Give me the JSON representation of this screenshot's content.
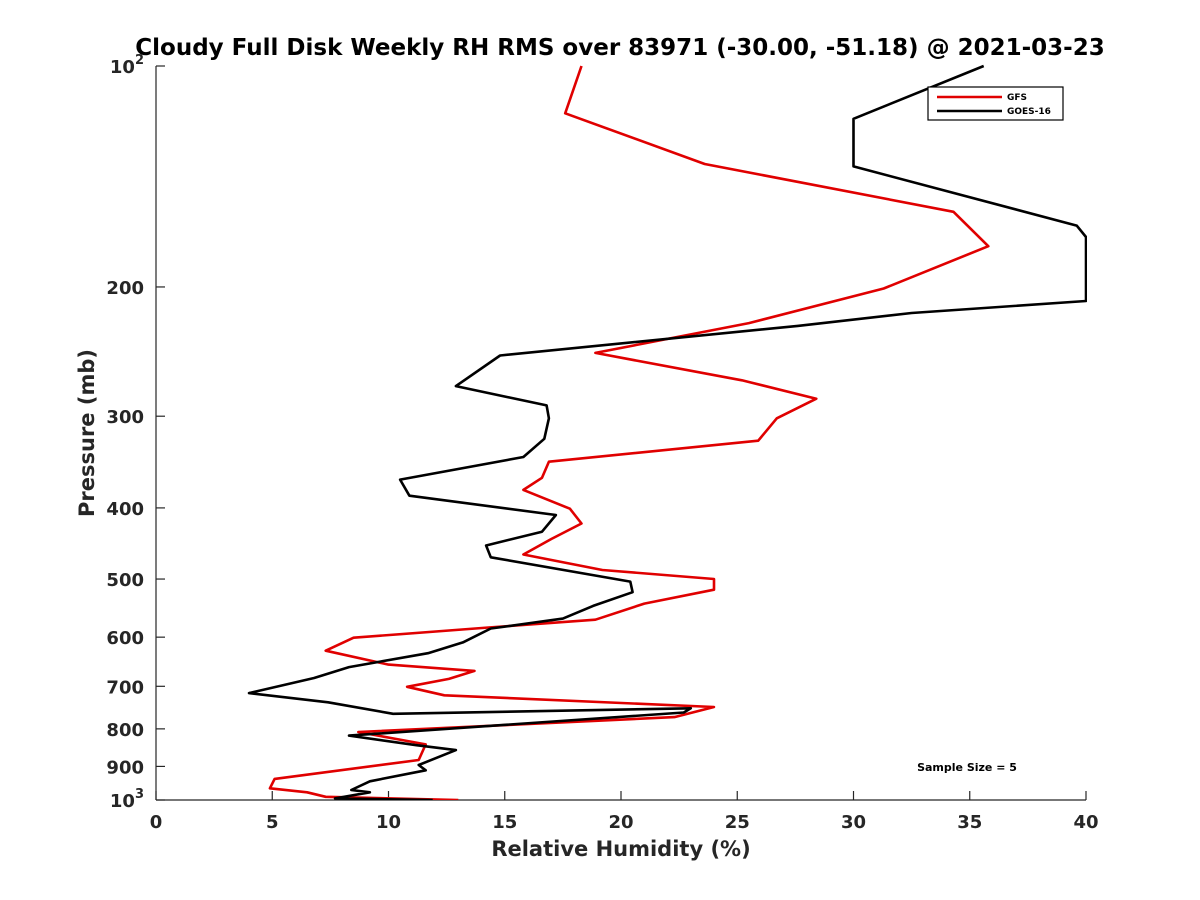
{
  "chart_data": {
    "type": "line",
    "title": "Cloudy Full Disk Weekly RH RMS over 83971 (-30.00, -51.18) @ 2021-03-23",
    "xlabel": "Relative Humidity (%)",
    "ylabel": "Pressure (mb)",
    "xlim": [
      0,
      40
    ],
    "ylim": [
      100,
      1000
    ],
    "y_scale": "log",
    "y_reversed": true,
    "x_ticks": [
      "0",
      "5",
      "10",
      "15",
      "20",
      "25",
      "30",
      "35",
      "40"
    ],
    "y_ticks": [
      {
        "value": 100,
        "base": "10",
        "exp": "2"
      },
      {
        "value": 200,
        "label": "200"
      },
      {
        "value": 300,
        "label": "300"
      },
      {
        "value": 400,
        "label": "400"
      },
      {
        "value": 500,
        "label": "500"
      },
      {
        "value": 600,
        "label": "600"
      },
      {
        "value": 700,
        "label": "700"
      },
      {
        "value": 800,
        "label": "800"
      },
      {
        "value": 900,
        "label": "900"
      },
      {
        "value": 1000,
        "base": "10",
        "exp": "3"
      }
    ],
    "legend_position": "top-right",
    "grid": false,
    "annotation": "Sample Size = 5",
    "series": [
      {
        "name": "GFS",
        "color": "#e00000",
        "points": [
          [
            18.3,
            100
          ],
          [
            17.6,
            116
          ],
          [
            23.6,
            136
          ],
          [
            34.3,
            158
          ],
          [
            35.8,
            176
          ],
          [
            31.3,
            201
          ],
          [
            25.5,
            224
          ],
          [
            18.9,
            246
          ],
          [
            25.2,
            268
          ],
          [
            28.4,
            284
          ],
          [
            26.7,
            302
          ],
          [
            25.9,
            324
          ],
          [
            16.9,
            346
          ],
          [
            16.6,
            364
          ],
          [
            15.8,
            378
          ],
          [
            17.8,
            401
          ],
          [
            18.3,
            420
          ],
          [
            17.0,
            441
          ],
          [
            15.8,
            463
          ],
          [
            19.2,
            486
          ],
          [
            24.0,
            500
          ],
          [
            24.0,
            517
          ],
          [
            21.0,
            540
          ],
          [
            18.9,
            568
          ],
          [
            14.3,
            582
          ],
          [
            8.5,
            601
          ],
          [
            7.3,
            626
          ],
          [
            10.0,
            654
          ],
          [
            13.7,
            667
          ],
          [
            12.6,
            684
          ],
          [
            10.8,
            701
          ],
          [
            12.4,
            720
          ],
          [
            24.0,
            747
          ],
          [
            22.3,
            771
          ],
          [
            8.7,
            808
          ],
          [
            11.6,
            840
          ],
          [
            11.3,
            882
          ],
          [
            5.1,
            936
          ],
          [
            4.9,
            964
          ],
          [
            6.5,
            976
          ],
          [
            7.3,
            990
          ],
          [
            13.0,
            1000
          ]
        ]
      },
      {
        "name": "GOES-16",
        "color": "#000000",
        "points": [
          [
            35.6,
            100
          ],
          [
            30.0,
            118
          ],
          [
            30.0,
            137
          ],
          [
            39.6,
            165
          ],
          [
            40.0,
            171
          ],
          [
            40.0,
            209
          ],
          [
            32.5,
            217
          ],
          [
            27.6,
            226
          ],
          [
            14.8,
            248
          ],
          [
            12.9,
            273
          ],
          [
            16.8,
            290
          ],
          [
            16.9,
            302
          ],
          [
            16.7,
            322
          ],
          [
            15.8,
            341
          ],
          [
            10.5,
            366
          ],
          [
            10.9,
            385
          ],
          [
            17.2,
            409
          ],
          [
            16.6,
            431
          ],
          [
            14.2,
            450
          ],
          [
            14.4,
            467
          ],
          [
            20.4,
            504
          ],
          [
            20.5,
            521
          ],
          [
            18.8,
            544
          ],
          [
            17.5,
            566
          ],
          [
            14.4,
            584
          ],
          [
            13.2,
            610
          ],
          [
            11.7,
            631
          ],
          [
            8.3,
            659
          ],
          [
            6.8,
            682
          ],
          [
            4.0,
            715
          ],
          [
            7.4,
            736
          ],
          [
            10.2,
            763
          ],
          [
            23.0,
            750
          ],
          [
            22.7,
            760
          ],
          [
            8.3,
            817
          ],
          [
            11.2,
            842
          ],
          [
            12.9,
            855
          ],
          [
            11.3,
            896
          ],
          [
            11.6,
            911
          ],
          [
            9.2,
            943
          ],
          [
            8.4,
            969
          ],
          [
            9.2,
            976
          ],
          [
            7.7,
            995
          ],
          [
            11.9,
            1000
          ]
        ]
      }
    ]
  }
}
